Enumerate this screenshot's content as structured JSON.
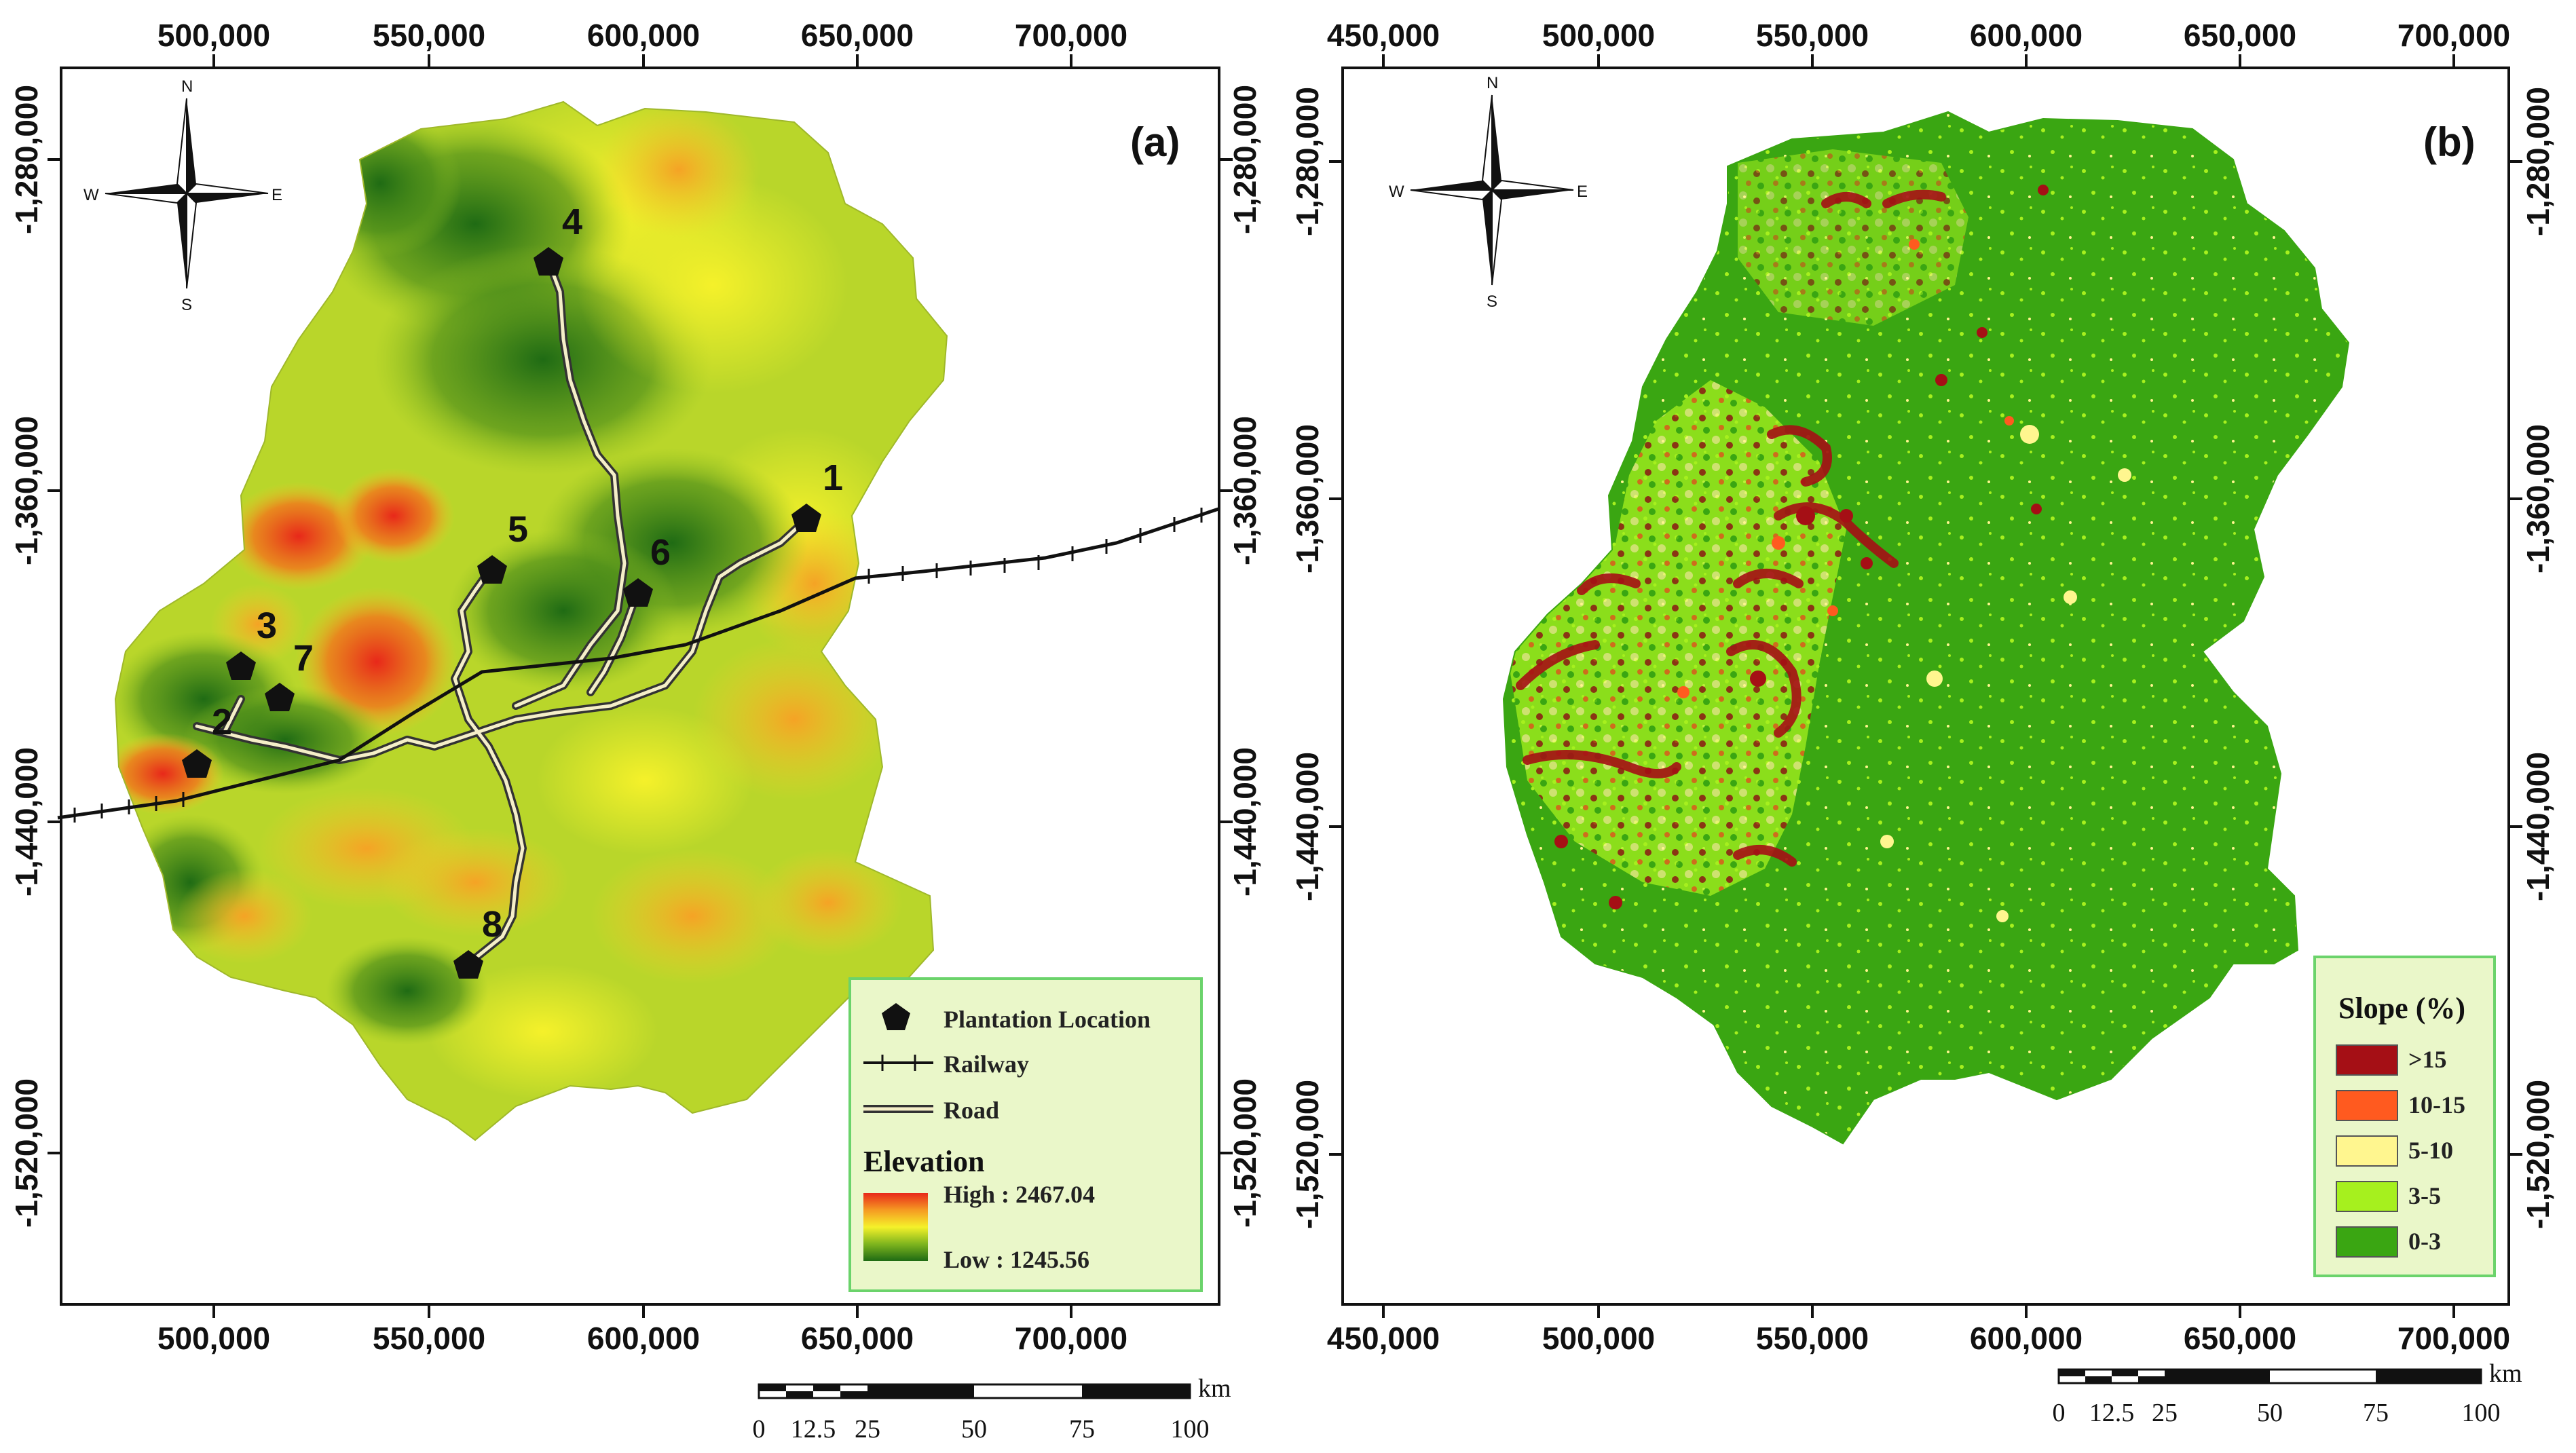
{
  "panel_a": {
    "label": "(a)",
    "x_ticks": [
      "500,000",
      "550,000",
      "600,000",
      "650,000",
      "700,000"
    ],
    "y_ticks": [
      "-1,280,000",
      "-1,360,000",
      "-1,440,000",
      "-1,520,000"
    ],
    "compass": {
      "n": "N",
      "s": "S",
      "e": "E",
      "w": "W"
    },
    "points": [
      {
        "id": "1",
        "label": "1"
      },
      {
        "id": "2",
        "label": "2"
      },
      {
        "id": "3",
        "label": "3"
      },
      {
        "id": "4",
        "label": "4"
      },
      {
        "id": "5",
        "label": "5"
      },
      {
        "id": "6",
        "label": "6"
      },
      {
        "id": "7",
        "label": "7"
      },
      {
        "id": "8",
        "label": "8"
      }
    ],
    "legend": {
      "plantation": "Plantation Location",
      "railway": "Railway",
      "road": "Road",
      "elevation_title": "Elevation",
      "high": "High : 2467.04",
      "low": "Low : 1245.56",
      "colors": {
        "high": "#e8281a",
        "mid": "#f5f12a",
        "low": "#1f6b14"
      }
    },
    "scale": {
      "unit": "km",
      "labels": [
        "0",
        "12.5",
        "25",
        "50",
        "75",
        "100"
      ]
    }
  },
  "panel_b": {
    "label": "(b)",
    "x_ticks": [
      "450,000",
      "500,000",
      "550,000",
      "600,000",
      "650,000",
      "700,000"
    ],
    "y_ticks": [
      "-1,280,000",
      "-1,360,000",
      "-1,440,000",
      "-1,520,000"
    ],
    "compass": {
      "n": "N",
      "s": "S",
      "e": "E",
      "w": "W"
    },
    "legend": {
      "title": "Slope (%)",
      "classes": [
        {
          "label": ">15",
          "color": "#a50f15"
        },
        {
          "label": "10-15",
          "color": "#ff5a1f"
        },
        {
          "label": "5-10",
          "color": "#fff68f"
        },
        {
          "label": "3-5",
          "color": "#a6f01e"
        },
        {
          "label": "0-3",
          "color": "#3aa612"
        }
      ]
    },
    "scale": {
      "unit": "km",
      "labels": [
        "0",
        "12.5",
        "25",
        "50",
        "75",
        "100"
      ]
    }
  }
}
